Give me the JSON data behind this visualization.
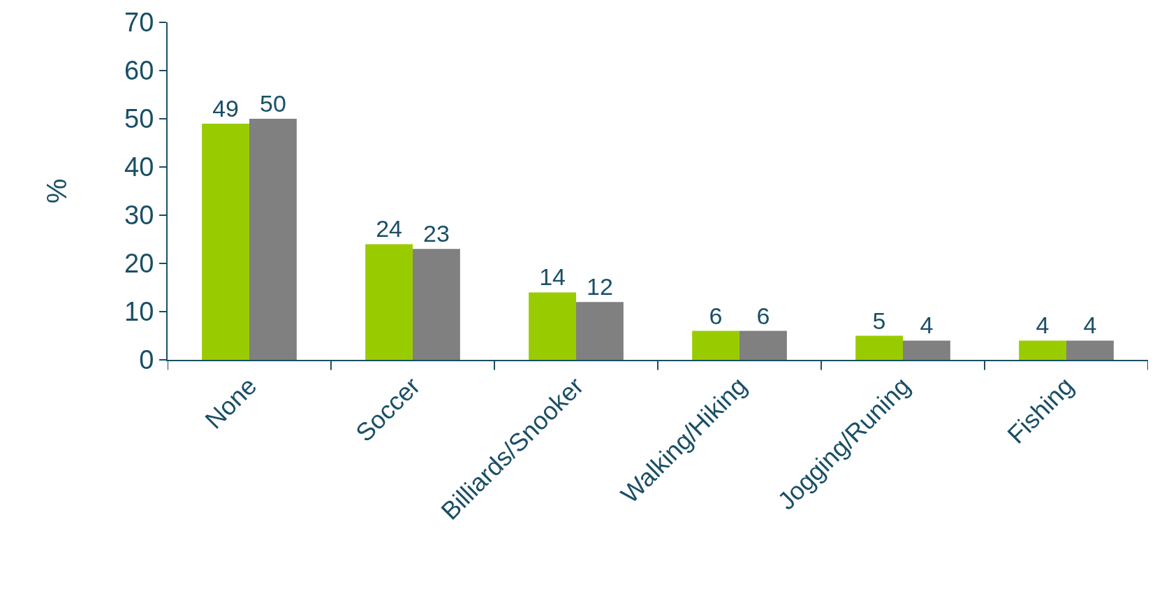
{
  "chart_data": {
    "type": "bar",
    "ylabel": "%",
    "categories": [
      "None",
      "Soccer",
      "Billiards/Snooker",
      "Walking/Hiking",
      "Jogging/Runing",
      "Fishing"
    ],
    "series": [
      {
        "color": "#99cc00",
        "values": [
          49,
          24,
          14,
          6,
          5,
          4
        ]
      },
      {
        "color": "#808080",
        "values": [
          50,
          23,
          12,
          6,
          4,
          4
        ]
      }
    ],
    "ylim": [
      0,
      70
    ],
    "yticks": [
      0,
      10,
      20,
      30,
      40,
      50,
      60,
      70
    ],
    "data_labels": true
  }
}
